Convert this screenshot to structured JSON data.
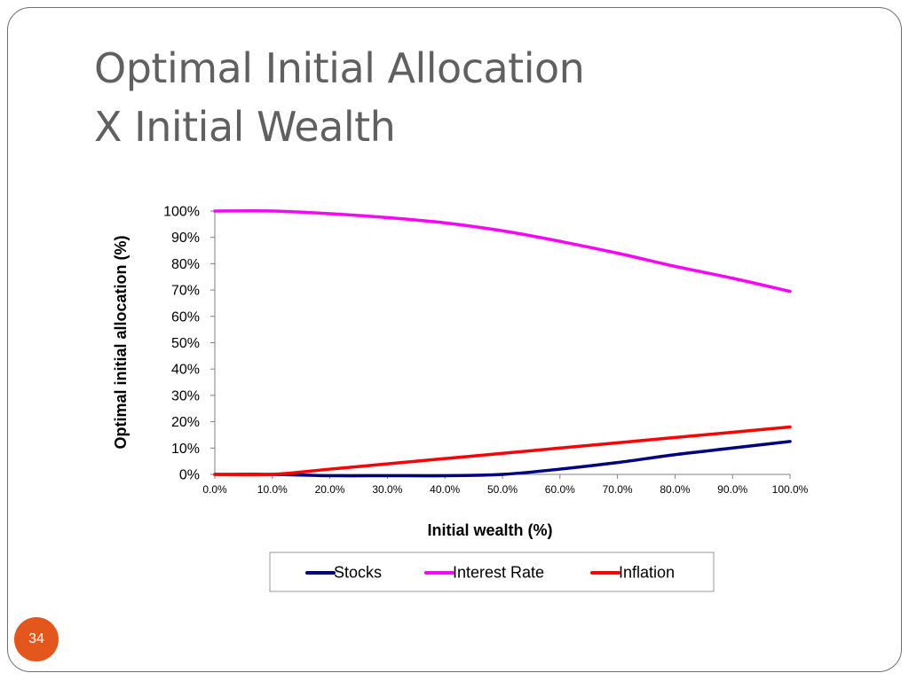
{
  "slide": {
    "title_line1": "Optimal Initial Allocation",
    "title_line2": "X Initial Wealth",
    "page_number": "34",
    "badge_color": "#e4571c"
  },
  "chart_data": {
    "type": "line",
    "xlabel": "Initial wealth (%)",
    "ylabel": "Optimal initial allocation (%)",
    "x": [
      0,
      10,
      20,
      30,
      40,
      50,
      60,
      70,
      80,
      90,
      100
    ],
    "x_tick_labels": [
      "0.0%",
      "10.0%",
      "20.0%",
      "30.0%",
      "40.0%",
      "50.0%",
      "60.0%",
      "70.0%",
      "80.0%",
      "90.0%",
      "100.0%"
    ],
    "y_tick_values": [
      0,
      10,
      20,
      30,
      40,
      50,
      60,
      70,
      80,
      90,
      100
    ],
    "y_tick_labels": [
      "0%",
      "10%",
      "20%",
      "30%",
      "40%",
      "50%",
      "60%",
      "70%",
      "80%",
      "90%",
      "100%"
    ],
    "xlim": [
      0,
      100
    ],
    "ylim": [
      0,
      100
    ],
    "grid": false,
    "legend_position": "bottom",
    "series": [
      {
        "name": "Stocks",
        "color": "#000080",
        "values": [
          0,
          0,
          -0.5,
          -0.5,
          -0.5,
          0,
          2,
          4.5,
          7.5,
          10,
          12.5
        ]
      },
      {
        "name": "Interest Rate",
        "color": "#ff00ff",
        "values": [
          100,
          100,
          99,
          97.5,
          95.5,
          92.5,
          88.5,
          84,
          79,
          74.5,
          69.5
        ]
      },
      {
        "name": "Inflation",
        "color": "#ff0000",
        "values": [
          0,
          0,
          2,
          4,
          6,
          8,
          10,
          12,
          14,
          16,
          18
        ]
      }
    ]
  }
}
